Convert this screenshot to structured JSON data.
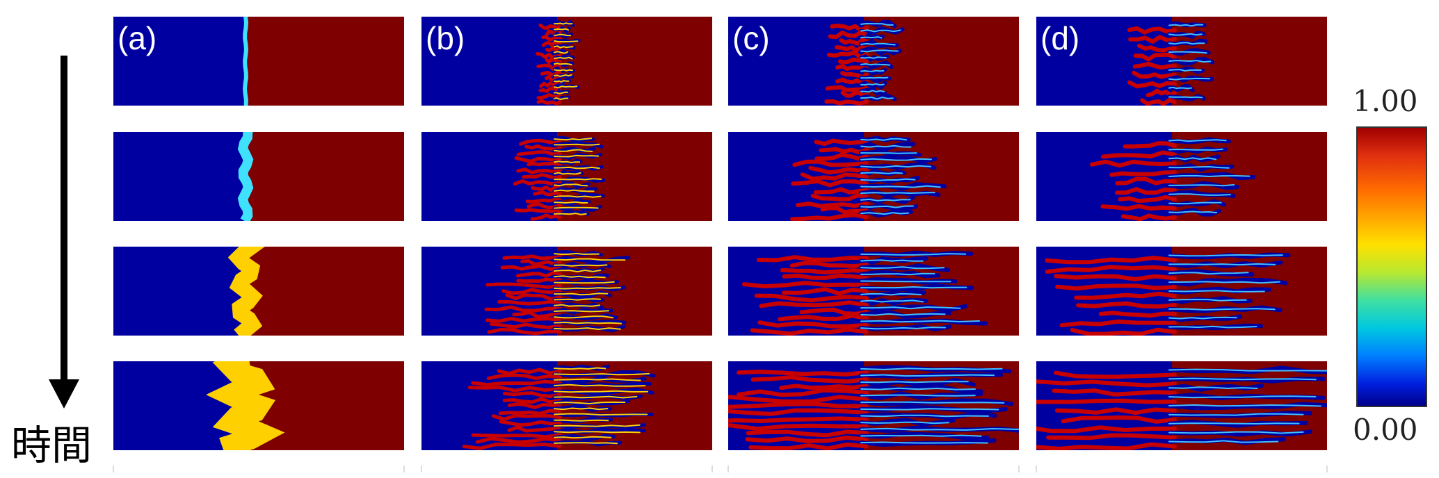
{
  "time_axis": {
    "label": "時間"
  },
  "colorbar": {
    "max_label": "1.00",
    "min_label": "0.00"
  },
  "columns": [
    {
      "letter": "(a)"
    },
    {
      "letter": "(b)"
    },
    {
      "letter": "(c)"
    },
    {
      "letter": "(d)"
    }
  ],
  "colors": {
    "low": "#0000a0",
    "high": "#7e0000",
    "interface": "#ffd000"
  }
}
